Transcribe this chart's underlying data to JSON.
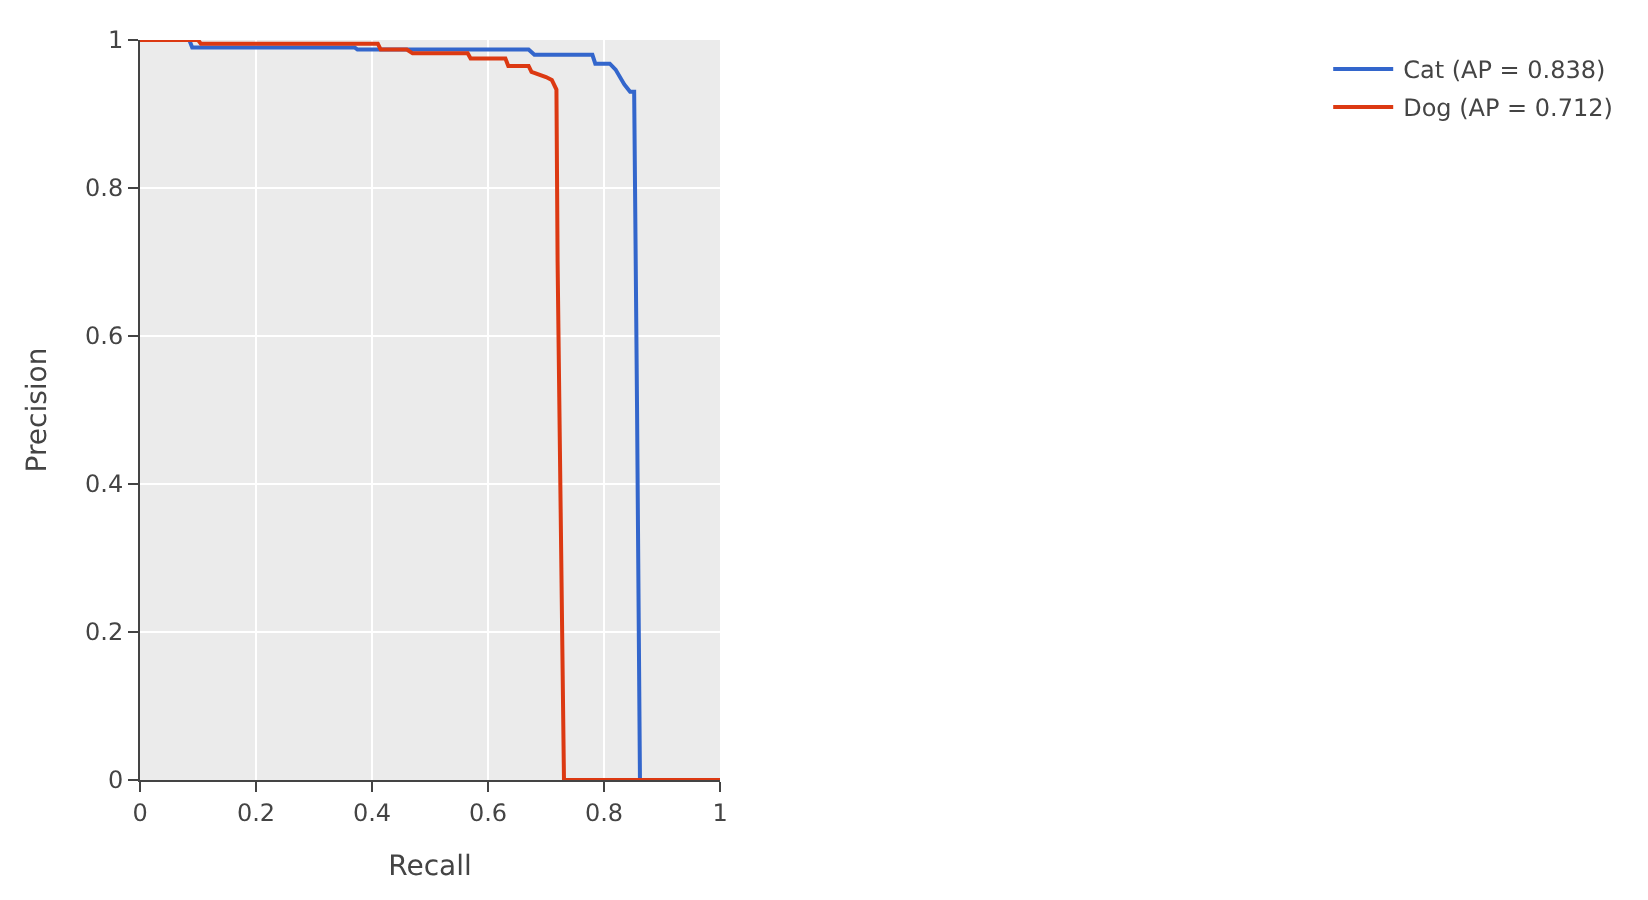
{
  "chart_data": {
    "type": "line",
    "xlabel": "Recall",
    "ylabel": "Precision",
    "series": [
      {
        "name": "Cat (AP = 0.838)",
        "color": "#3366cc",
        "x": [
          0,
          0.085,
          0.09,
          0.37,
          0.375,
          0.67,
          0.68,
          0.78,
          0.785,
          0.81,
          0.82,
          0.835,
          0.845,
          0.852,
          0.857,
          0.862,
          1
        ],
        "values": [
          1,
          1,
          0.99,
          0.99,
          0.987,
          0.987,
          0.98,
          0.98,
          0.968,
          0.968,
          0.96,
          0.94,
          0.93,
          0.93,
          0.5,
          0,
          0
        ]
      },
      {
        "name": "Dog (AP = 0.712)",
        "color": "#dc3912",
        "x": [
          0,
          0.1,
          0.105,
          0.41,
          0.415,
          0.46,
          0.47,
          0.565,
          0.57,
          0.63,
          0.635,
          0.67,
          0.675,
          0.7,
          0.71,
          0.718,
          0.72,
          0.731,
          1
        ],
        "values": [
          1,
          1,
          0.995,
          0.995,
          0.987,
          0.987,
          0.982,
          0.982,
          0.975,
          0.975,
          0.965,
          0.965,
          0.957,
          0.95,
          0.946,
          0.933,
          0.7,
          0,
          0
        ]
      }
    ],
    "xlim": [
      0,
      1
    ],
    "ylim": [
      0,
      1
    ],
    "xticks": [
      0,
      {
        "value": 0.2,
        "label": "0.2"
      },
      {
        "value": 0.4,
        "label": "0.4"
      },
      {
        "value": 0.6,
        "label": "0.6"
      },
      {
        "value": 0.8,
        "label": "0.8"
      },
      1
    ],
    "yticks": [
      0,
      {
        "value": 0.2,
        "label": "0.2"
      },
      {
        "value": 0.4,
        "label": "0.4"
      },
      {
        "value": 0.6,
        "label": "0.6"
      },
      {
        "value": 0.8,
        "label": "0.8"
      },
      1
    ],
    "grid": true,
    "legend": "top right",
    "marker": "none",
    "line_style": "solid"
  }
}
